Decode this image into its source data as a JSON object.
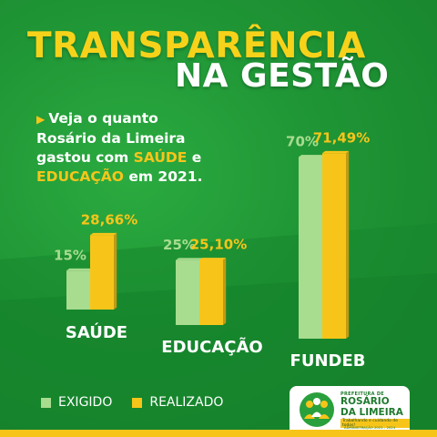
{
  "title": {
    "line1": "TRANSPARÊNCIA",
    "line2": "NA GESTÃO"
  },
  "intro": {
    "line1": "Veja o quanto",
    "line2": "Rosário da Limeira",
    "line3_a": "gastou com ",
    "line3_b": "SAÚDE",
    "line3_c": " e",
    "line4_a": "EDUCAÇÃO",
    "line4_b": " em 2021."
  },
  "chart_data": {
    "type": "bar",
    "categories": [
      "SAÚDE",
      "EDUCAÇÃO",
      "FUNDEB"
    ],
    "series": [
      {
        "name": "EXIGIDO",
        "values": [
          15,
          25,
          70
        ],
        "labels": [
          "15%",
          "25%",
          "70%"
        ],
        "color": "#a8dc8f"
      },
      {
        "name": "REALIZADO",
        "values": [
          28.66,
          25.1,
          71.49
        ],
        "labels": [
          "28,66%",
          "25,10%",
          "71,49%"
        ],
        "color": "#f7c51a"
      }
    ],
    "ylim": [
      0,
      75
    ]
  },
  "legend": {
    "required": "EXIGIDO",
    "realized": "REALIZADO"
  },
  "logo": {
    "prefix": "PREFEITURA DE",
    "name1": "ROSÁRIO",
    "name2": "DA LIMEIRA",
    "slogan": "Trabalhando e cuidando de todos!",
    "admin": "ADMINISTRAÇÃO 2021 - 2024"
  },
  "colors": {
    "background": "#1f9535",
    "yellow": "#f7c51a",
    "light_green": "#a8dc8f"
  }
}
